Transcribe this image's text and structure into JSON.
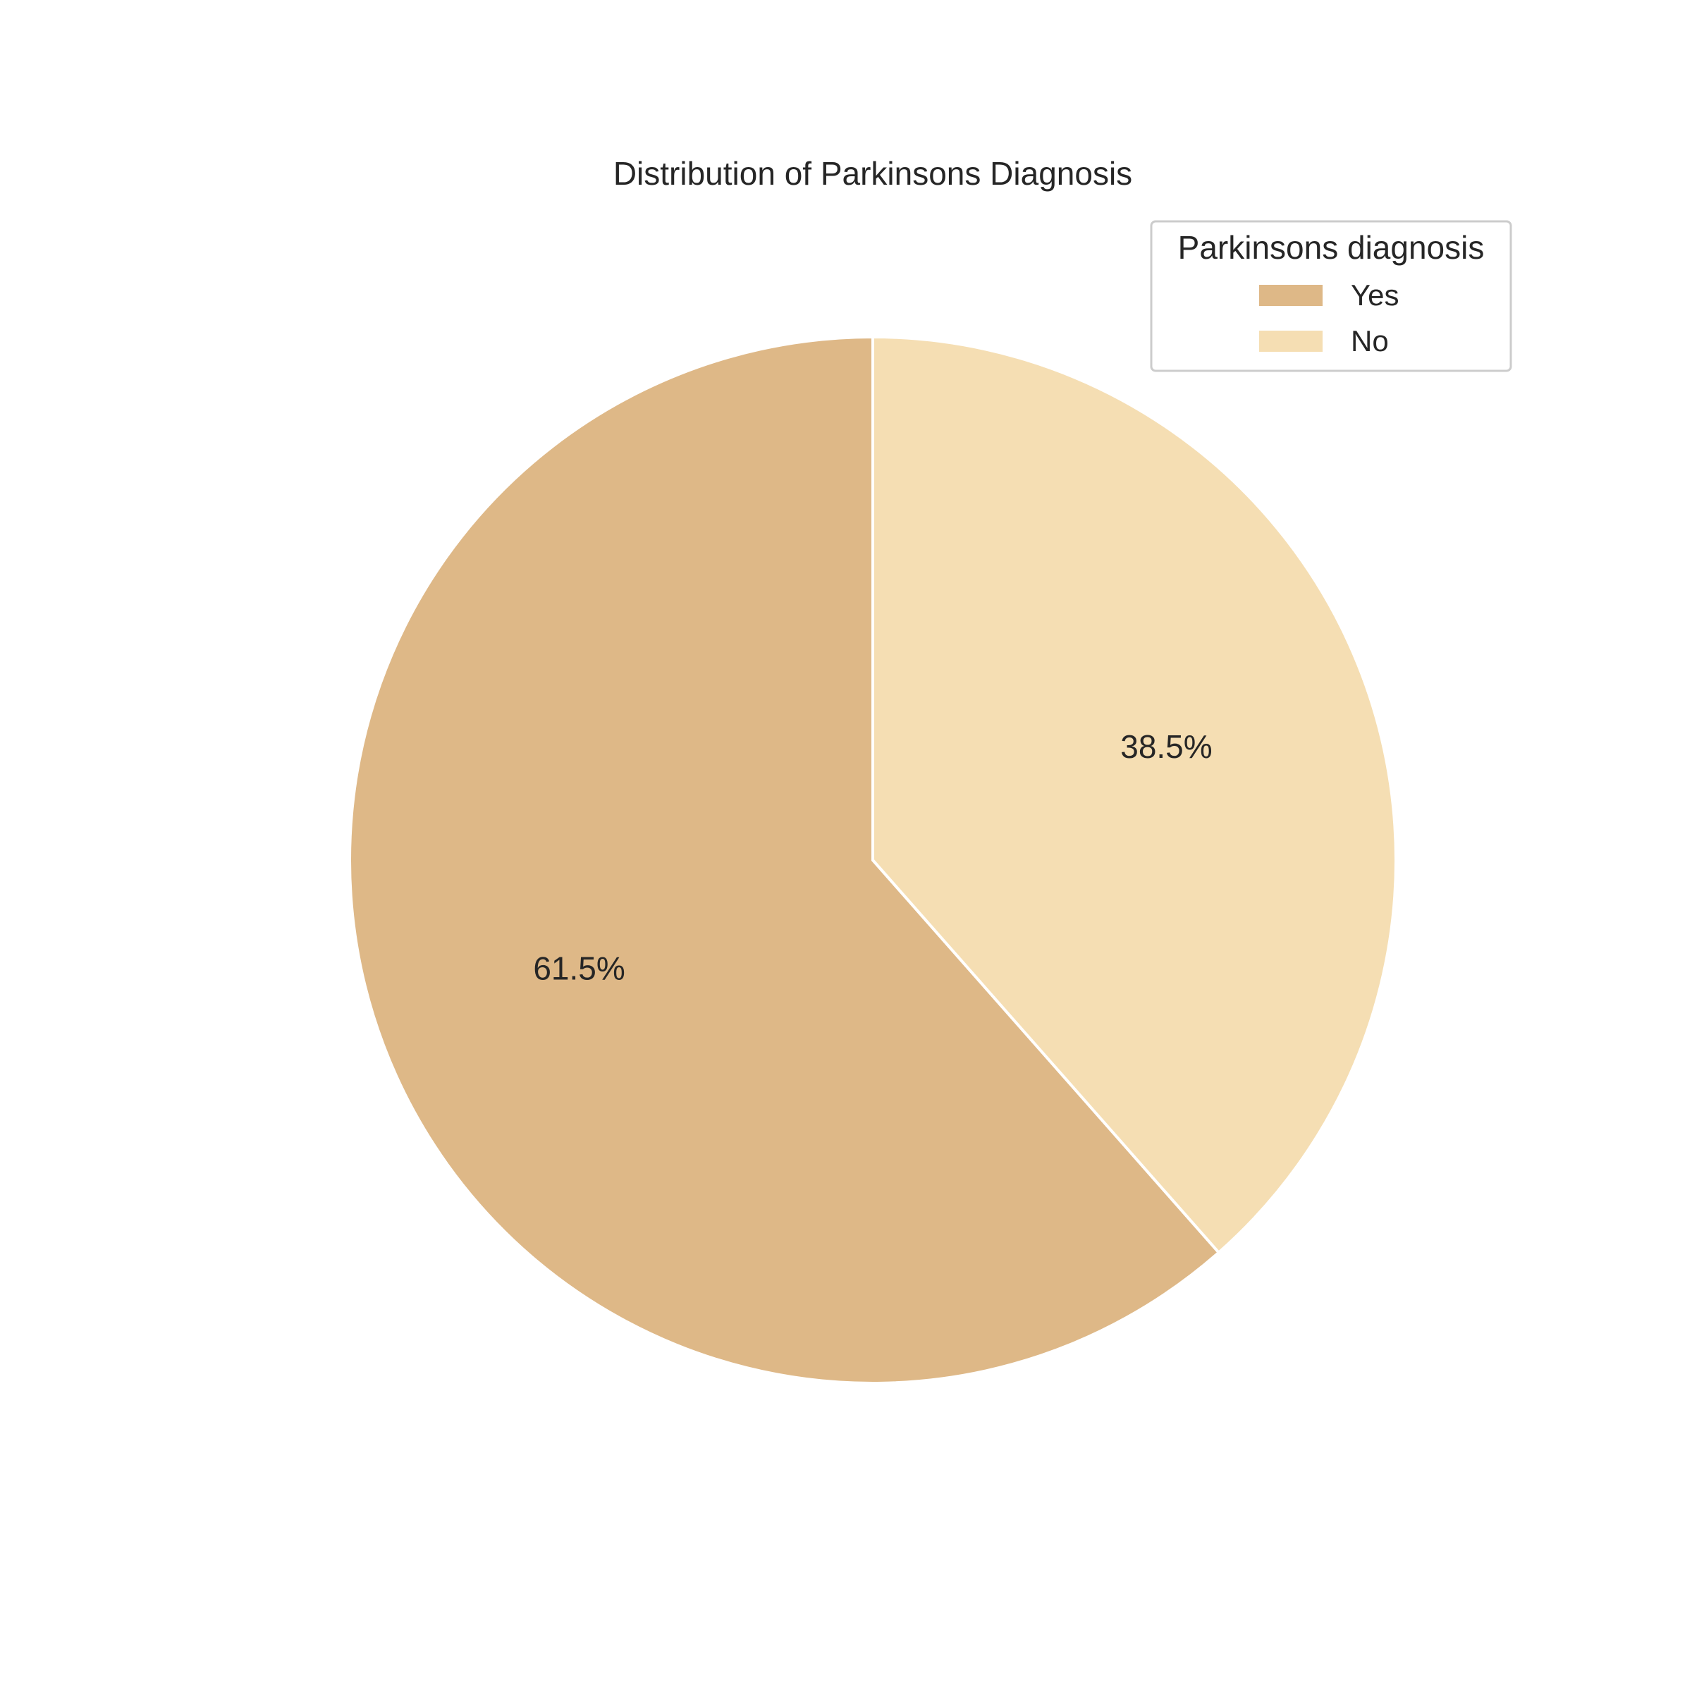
{
  "chart_data": {
    "type": "pie",
    "title": "Distribution of Parkinsons Diagnosis",
    "categories": [
      "Yes",
      "No"
    ],
    "values": [
      61.5,
      38.5
    ],
    "value_labels": [
      "61.5%",
      "38.5%"
    ],
    "colors": [
      "#deb887",
      "#f5deb3"
    ],
    "edge_color": "#ffffff",
    "start_angle_deg": 90,
    "direction": "counterclockwise",
    "legend": {
      "title": "Parkinsons diagnosis",
      "placement": "top-right"
    }
  }
}
